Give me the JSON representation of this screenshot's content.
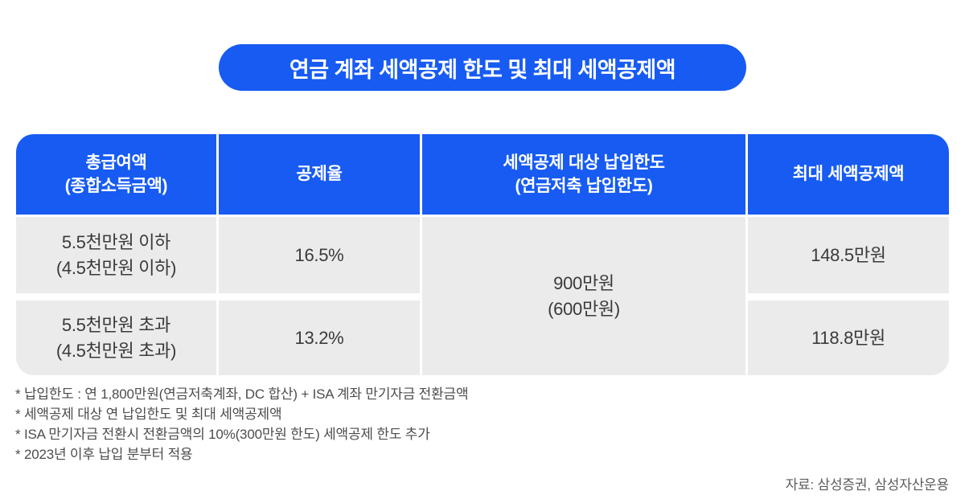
{
  "colors": {
    "blue": "#175BF3",
    "row_bg": "#EBEBEB",
    "cell_text": "#3A3A3A",
    "footnote_text": "#4D4D4D",
    "source_text": "#5C5C5C"
  },
  "title": "연금 계좌 세액공제 한도 및 최대 세액공제액",
  "table": {
    "headers": [
      {
        "line1": "총급여액",
        "line2": "(종합소득금액)"
      },
      {
        "line1": "공제율",
        "line2": ""
      },
      {
        "line1": "세액공제 대상 납입한도",
        "line2": "(연금저축 납입한도)"
      },
      {
        "line1": "최대 세액공제액",
        "line2": ""
      }
    ],
    "rows": [
      {
        "income1": "5.5천만원 이하",
        "income2": "(4.5천만원 이하)",
        "rate": "16.5%",
        "max": "148.5만원"
      },
      {
        "income1": "5.5천만원 초과",
        "income2": "(4.5천만원 초과)",
        "rate": "13.2%",
        "max": "118.8만원"
      }
    ],
    "merged_limit": {
      "line1": "900만원",
      "line2": "(600만원)"
    }
  },
  "footnotes": [
    "* 납입한도 : 연 1,800만원(연금저축계좌, DC 합산) + ISA 계좌 만기자금 전환금액",
    "* 세액공제 대상 연 납입한도 및 최대 세액공제액",
    "* ISA 만기자금 전환시 전환금액의 10%(300만원 한도) 세액공제 한도 추가",
    "* 2023년 이후 납입 분부터 적용"
  ],
  "source": "자료: 삼성증권, 삼성자산운용",
  "chart_data": {
    "type": "table",
    "title": "연금 계좌 세액공제 한도 및 최대 세액공제액",
    "columns": [
      "총급여액 (종합소득금액)",
      "공제율",
      "세액공제 대상 납입한도 (연금저축 납입한도)",
      "최대 세액공제액"
    ],
    "rows": [
      [
        "5.5천만원 이하 (4.5천만원 이하)",
        "16.5%",
        "900만원 (600만원)",
        "148.5만원"
      ],
      [
        "5.5천만원 초과 (4.5천만원 초과)",
        "13.2%",
        "900만원 (600만원)",
        "118.8만원"
      ]
    ],
    "merged_cells": [
      {
        "column_index": 2,
        "row_indexes": [
          0,
          1
        ],
        "value": "900만원 (600만원)"
      }
    ],
    "footnotes": [
      "* 납입한도 : 연 1,800만원(연금저축계좌, DC 합산) + ISA 계좌 만기자금 전환금액",
      "* 세액공제 대상 연 납입한도 및 최대 세액공제액",
      "* ISA 만기자금 전환시 전환금액의 10%(300만원 한도) 세액공제 한도 추가",
      "* 2023년 이후 납입 분부터 적용"
    ],
    "source": "자료: 삼성증권, 삼성자산운용"
  }
}
